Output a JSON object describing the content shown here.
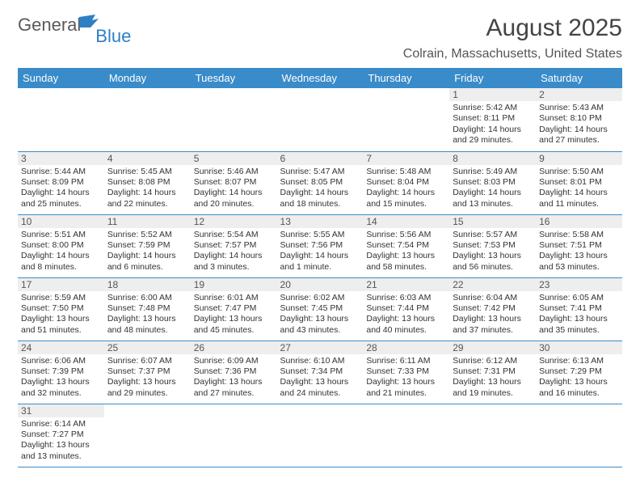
{
  "logo": {
    "text1": "General",
    "text2": "Blue"
  },
  "title": "August 2025",
  "subtitle": "Colrain, Massachusetts, United States",
  "colors": {
    "header_bg": "#3a8bc9",
    "header_text": "#ffffff",
    "daynum_bg": "#eeeeee",
    "border": "#3a8bc9",
    "title_color": "#444444",
    "body_text": "#333333",
    "logo_gray": "#5a5a5a",
    "logo_blue": "#2f80c3"
  },
  "weekdays": [
    "Sunday",
    "Monday",
    "Tuesday",
    "Wednesday",
    "Thursday",
    "Friday",
    "Saturday"
  ],
  "weeks": [
    [
      null,
      null,
      null,
      null,
      null,
      {
        "n": "1",
        "sr": "5:42 AM",
        "ss": "8:11 PM",
        "dl": "14 hours and 29 minutes."
      },
      {
        "n": "2",
        "sr": "5:43 AM",
        "ss": "8:10 PM",
        "dl": "14 hours and 27 minutes."
      }
    ],
    [
      {
        "n": "3",
        "sr": "5:44 AM",
        "ss": "8:09 PM",
        "dl": "14 hours and 25 minutes."
      },
      {
        "n": "4",
        "sr": "5:45 AM",
        "ss": "8:08 PM",
        "dl": "14 hours and 22 minutes."
      },
      {
        "n": "5",
        "sr": "5:46 AM",
        "ss": "8:07 PM",
        "dl": "14 hours and 20 minutes."
      },
      {
        "n": "6",
        "sr": "5:47 AM",
        "ss": "8:05 PM",
        "dl": "14 hours and 18 minutes."
      },
      {
        "n": "7",
        "sr": "5:48 AM",
        "ss": "8:04 PM",
        "dl": "14 hours and 15 minutes."
      },
      {
        "n": "8",
        "sr": "5:49 AM",
        "ss": "8:03 PM",
        "dl": "14 hours and 13 minutes."
      },
      {
        "n": "9",
        "sr": "5:50 AM",
        "ss": "8:01 PM",
        "dl": "14 hours and 11 minutes."
      }
    ],
    [
      {
        "n": "10",
        "sr": "5:51 AM",
        "ss": "8:00 PM",
        "dl": "14 hours and 8 minutes."
      },
      {
        "n": "11",
        "sr": "5:52 AM",
        "ss": "7:59 PM",
        "dl": "14 hours and 6 minutes."
      },
      {
        "n": "12",
        "sr": "5:54 AM",
        "ss": "7:57 PM",
        "dl": "14 hours and 3 minutes."
      },
      {
        "n": "13",
        "sr": "5:55 AM",
        "ss": "7:56 PM",
        "dl": "14 hours and 1 minute."
      },
      {
        "n": "14",
        "sr": "5:56 AM",
        "ss": "7:54 PM",
        "dl": "13 hours and 58 minutes."
      },
      {
        "n": "15",
        "sr": "5:57 AM",
        "ss": "7:53 PM",
        "dl": "13 hours and 56 minutes."
      },
      {
        "n": "16",
        "sr": "5:58 AM",
        "ss": "7:51 PM",
        "dl": "13 hours and 53 minutes."
      }
    ],
    [
      {
        "n": "17",
        "sr": "5:59 AM",
        "ss": "7:50 PM",
        "dl": "13 hours and 51 minutes."
      },
      {
        "n": "18",
        "sr": "6:00 AM",
        "ss": "7:48 PM",
        "dl": "13 hours and 48 minutes."
      },
      {
        "n": "19",
        "sr": "6:01 AM",
        "ss": "7:47 PM",
        "dl": "13 hours and 45 minutes."
      },
      {
        "n": "20",
        "sr": "6:02 AM",
        "ss": "7:45 PM",
        "dl": "13 hours and 43 minutes."
      },
      {
        "n": "21",
        "sr": "6:03 AM",
        "ss": "7:44 PM",
        "dl": "13 hours and 40 minutes."
      },
      {
        "n": "22",
        "sr": "6:04 AM",
        "ss": "7:42 PM",
        "dl": "13 hours and 37 minutes."
      },
      {
        "n": "23",
        "sr": "6:05 AM",
        "ss": "7:41 PM",
        "dl": "13 hours and 35 minutes."
      }
    ],
    [
      {
        "n": "24",
        "sr": "6:06 AM",
        "ss": "7:39 PM",
        "dl": "13 hours and 32 minutes."
      },
      {
        "n": "25",
        "sr": "6:07 AM",
        "ss": "7:37 PM",
        "dl": "13 hours and 29 minutes."
      },
      {
        "n": "26",
        "sr": "6:09 AM",
        "ss": "7:36 PM",
        "dl": "13 hours and 27 minutes."
      },
      {
        "n": "27",
        "sr": "6:10 AM",
        "ss": "7:34 PM",
        "dl": "13 hours and 24 minutes."
      },
      {
        "n": "28",
        "sr": "6:11 AM",
        "ss": "7:33 PM",
        "dl": "13 hours and 21 minutes."
      },
      {
        "n": "29",
        "sr": "6:12 AM",
        "ss": "7:31 PM",
        "dl": "13 hours and 19 minutes."
      },
      {
        "n": "30",
        "sr": "6:13 AM",
        "ss": "7:29 PM",
        "dl": "13 hours and 16 minutes."
      }
    ],
    [
      {
        "n": "31",
        "sr": "6:14 AM",
        "ss": "7:27 PM",
        "dl": "13 hours and 13 minutes."
      },
      null,
      null,
      null,
      null,
      null,
      null
    ]
  ],
  "labels": {
    "sunrise": "Sunrise:",
    "sunset": "Sunset:",
    "daylight": "Daylight:"
  }
}
